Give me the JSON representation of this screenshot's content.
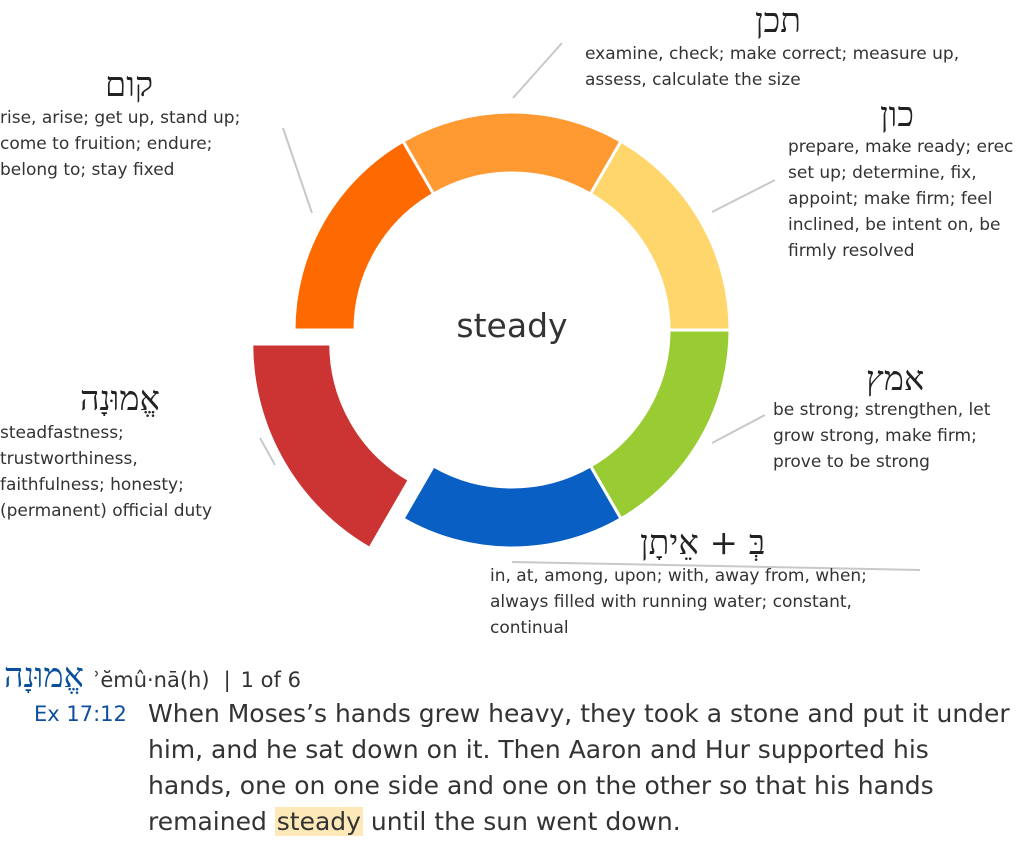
{
  "center_label": "steady",
  "ring_colors": [
    "#ff9a33",
    "#ffd66b",
    "#99cc33",
    "#0a5fc4",
    "#cc3333",
    "#ff6a00"
  ],
  "roots": {
    "tkn": {
      "hebrew": "תכן",
      "gloss_lines": [
        "examine, check; make correct; measure up,",
        "assess, calculate the size"
      ]
    },
    "kwn": {
      "hebrew": "כון",
      "gloss_lines": [
        "prepare, make ready; erec",
        "set up; determine, fix,",
        "appoint; make firm; feel",
        "inclined, be intent on, be",
        "firmly resolved"
      ]
    },
    "amts": {
      "hebrew": "אמץ",
      "gloss_lines": [
        "be strong; strengthen, let",
        "grow strong, make firm;",
        "prove to be strong"
      ]
    },
    "beitan": {
      "hebrew": "בְּ + אֵיתָן",
      "gloss_lines": [
        "in, at, among, upon; with, away from, when;",
        "always filled with running water; constant,",
        "continual"
      ]
    },
    "emunah": {
      "hebrew": "אֱמוּנָה",
      "gloss_lines": [
        "steadfastness;",
        "trustworthiness,",
        "faithfulness; honesty;",
        "(permanent) official duty"
      ]
    },
    "qum": {
      "hebrew": "קום",
      "gloss_lines": [
        "rise, arise; get up, stand up;",
        "come to fruition; endure;",
        "belong to; stay fixed"
      ]
    }
  },
  "lemma": {
    "hebrew": "אֱמוּנָה",
    "transliteration": "ʾĕmû·nā(h)",
    "separator": "|",
    "count": "1 of 6"
  },
  "verse": {
    "reference": "Ex 17:12",
    "before": "When Moses’s hands grew heavy, they took a stone and put it under him, and he sat down on it. Then Aaron and Hur supported his hands, one on one side and one on the other so that his hands remained ",
    "highlight": "steady",
    "after": " until the sun went down."
  }
}
